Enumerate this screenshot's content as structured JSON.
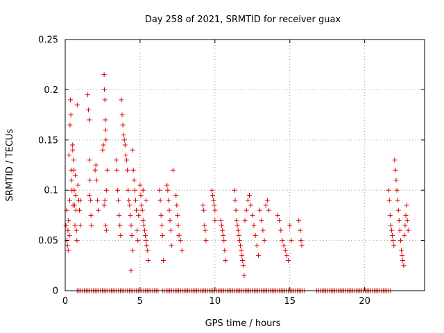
{
  "chart_data": {
    "type": "scatter",
    "title": "Day 258 of 2021, SRMTID for receiver guax",
    "xlabel": "GPS time / hours",
    "ylabel": "SRMTID / TECUs",
    "xlim": [
      0,
      24
    ],
    "ylim": [
      0,
      0.25
    ],
    "xticks": [
      0,
      5,
      10,
      15,
      20
    ],
    "xtick_labels": [
      "0",
      "5",
      "10",
      "15",
      "20"
    ],
    "yticks": [
      0,
      0.05,
      0.1,
      0.15,
      0.2,
      0.25
    ],
    "ytick_labels": [
      "0",
      "0.05",
      "0.1",
      "0.15",
      "0.2",
      "0.25"
    ],
    "grid": true,
    "marker": "+",
    "color": "#e00000",
    "series": [
      {
        "name": "SRMTID",
        "points": [
          [
            0.05,
            0.065
          ],
          [
            0.1,
            0.08
          ],
          [
            0.12,
            0.05
          ],
          [
            0.15,
            0.045
          ],
          [
            0.18,
            0.06
          ],
          [
            0.2,
            0.04
          ],
          [
            0.22,
            0.07
          ],
          [
            0.25,
            0.135
          ],
          [
            0.28,
            0.055
          ],
          [
            0.3,
            0.09
          ],
          [
            0.32,
            0.165
          ],
          [
            0.35,
            0.19
          ],
          [
            0.38,
            0.175
          ],
          [
            0.4,
            0.12
          ],
          [
            0.42,
            0.11
          ],
          [
            0.45,
            0.1
          ],
          [
            0.48,
            0.145
          ],
          [
            0.5,
            0.14
          ],
          [
            0.52,
            0.085
          ],
          [
            0.55,
            0.13
          ],
          [
            0.58,
            0.12
          ],
          [
            0.6,
            0.1
          ],
          [
            0.62,
            0.085
          ],
          [
            0.65,
            0.065
          ],
          [
            0.68,
            0.115
          ],
          [
            0.7,
            0.095
          ],
          [
            0.72,
            0.08
          ],
          [
            0.75,
            0.06
          ],
          [
            0.78,
            0.05
          ],
          [
            0.8,
            0.185
          ],
          [
            0.85,
            0.105
          ],
          [
            0.9,
            0.09
          ],
          [
            0.95,
            0.08
          ],
          [
            1.0,
            0.065
          ],
          [
            1.0,
            0.09
          ],
          [
            1.5,
            0.195
          ],
          [
            1.55,
            0.18
          ],
          [
            1.6,
            0.17
          ],
          [
            1.62,
            0.13
          ],
          [
            1.65,
            0.11
          ],
          [
            1.7,
            0.09
          ],
          [
            1.72,
            0.075
          ],
          [
            1.75,
            0.065
          ],
          [
            1.6,
            0.095
          ],
          [
            2.0,
            0.12
          ],
          [
            2.05,
            0.125
          ],
          [
            2.1,
            0.11
          ],
          [
            2.15,
            0.09
          ],
          [
            2.2,
            0.08
          ],
          [
            2.5,
            0.14
          ],
          [
            2.55,
            0.145
          ],
          [
            2.6,
            0.215
          ],
          [
            2.62,
            0.2
          ],
          [
            2.65,
            0.19
          ],
          [
            2.68,
            0.17
          ],
          [
            2.7,
            0.16
          ],
          [
            2.72,
            0.15
          ],
          [
            2.75,
            0.1
          ],
          [
            2.65,
            0.09
          ],
          [
            2.6,
            0.085
          ],
          [
            2.7,
            0.065
          ],
          [
            2.75,
            0.06
          ],
          [
            2.8,
            0.12
          ],
          [
            3.4,
            0.13
          ],
          [
            3.45,
            0.12
          ],
          [
            3.5,
            0.1
          ],
          [
            3.55,
            0.09
          ],
          [
            3.6,
            0.075
          ],
          [
            3.65,
            0.065
          ],
          [
            3.7,
            0.055
          ],
          [
            3.75,
            0.19
          ],
          [
            3.8,
            0.175
          ],
          [
            3.85,
            0.165
          ],
          [
            3.9,
            0.155
          ],
          [
            3.95,
            0.15
          ],
          [
            4.0,
            0.145
          ],
          [
            4.05,
            0.135
          ],
          [
            4.1,
            0.13
          ],
          [
            4.15,
            0.12
          ],
          [
            4.2,
            0.1
          ],
          [
            4.25,
            0.09
          ],
          [
            4.3,
            0.085
          ],
          [
            4.35,
            0.075
          ],
          [
            4.4,
            0.065
          ],
          [
            4.45,
            0.055
          ],
          [
            4.5,
            0.14
          ],
          [
            4.5,
            0.04
          ],
          [
            4.55,
            0.12
          ],
          [
            4.6,
            0.11
          ],
          [
            4.65,
            0.1
          ],
          [
            4.7,
            0.09
          ],
          [
            4.75,
            0.08
          ],
          [
            4.8,
            0.06
          ],
          [
            4.85,
            0.05
          ],
          [
            4.4,
            0.02
          ],
          [
            4.9,
            0.075
          ],
          [
            5.0,
            0.105
          ],
          [
            5.05,
            0.095
          ],
          [
            5.1,
            0.085
          ],
          [
            5.15,
            0.08
          ],
          [
            5.2,
            0.07
          ],
          [
            5.25,
            0.065
          ],
          [
            5.3,
            0.06
          ],
          [
            5.35,
            0.055
          ],
          [
            5.4,
            0.05
          ],
          [
            5.45,
            0.045
          ],
          [
            5.5,
            0.04
          ],
          [
            5.55,
            0.03
          ],
          [
            5.2,
            0.1
          ],
          [
            5.4,
            0.09
          ],
          [
            6.3,
            0.1
          ],
          [
            6.35,
            0.09
          ],
          [
            6.4,
            0.075
          ],
          [
            6.45,
            0.065
          ],
          [
            6.5,
            0.055
          ],
          [
            6.55,
            0.03
          ],
          [
            6.8,
            0.105
          ],
          [
            6.85,
            0.1
          ],
          [
            6.9,
            0.09
          ],
          [
            6.95,
            0.08
          ],
          [
            7.0,
            0.07
          ],
          [
            7.05,
            0.06
          ],
          [
            7.1,
            0.045
          ],
          [
            7.2,
            0.12
          ],
          [
            7.4,
            0.095
          ],
          [
            7.45,
            0.085
          ],
          [
            7.5,
            0.075
          ],
          [
            7.55,
            0.065
          ],
          [
            7.6,
            0.055
          ],
          [
            7.7,
            0.05
          ],
          [
            7.8,
            0.04
          ],
          [
            9.2,
            0.085
          ],
          [
            9.25,
            0.08
          ],
          [
            9.3,
            0.065
          ],
          [
            9.35,
            0.06
          ],
          [
            9.4,
            0.05
          ],
          [
            9.8,
            0.1
          ],
          [
            9.85,
            0.095
          ],
          [
            9.9,
            0.09
          ],
          [
            9.95,
            0.085
          ],
          [
            10.0,
            0.08
          ],
          [
            10.0,
            0.07
          ],
          [
            10.4,
            0.07
          ],
          [
            10.45,
            0.065
          ],
          [
            10.5,
            0.06
          ],
          [
            10.55,
            0.055
          ],
          [
            10.6,
            0.05
          ],
          [
            10.65,
            0.04
          ],
          [
            10.7,
            0.03
          ],
          [
            11.3,
            0.1
          ],
          [
            11.35,
            0.09
          ],
          [
            11.4,
            0.08
          ],
          [
            11.45,
            0.07
          ],
          [
            11.5,
            0.065
          ],
          [
            11.55,
            0.06
          ],
          [
            11.6,
            0.055
          ],
          [
            11.65,
            0.05
          ],
          [
            11.7,
            0.045
          ],
          [
            11.75,
            0.04
          ],
          [
            11.8,
            0.035
          ],
          [
            11.85,
            0.03
          ],
          [
            11.9,
            0.025
          ],
          [
            11.95,
            0.015
          ],
          [
            12.0,
            0.07
          ],
          [
            12.1,
            0.08
          ],
          [
            12.2,
            0.09
          ],
          [
            12.3,
            0.095
          ],
          [
            12.4,
            0.085
          ],
          [
            12.5,
            0.075
          ],
          [
            12.6,
            0.065
          ],
          [
            12.7,
            0.055
          ],
          [
            12.8,
            0.045
          ],
          [
            12.9,
            0.035
          ],
          [
            13.0,
            0.08
          ],
          [
            13.1,
            0.07
          ],
          [
            13.2,
            0.06
          ],
          [
            13.3,
            0.05
          ],
          [
            13.4,
            0.085
          ],
          [
            13.5,
            0.09
          ],
          [
            13.6,
            0.08
          ],
          [
            14.2,
            0.075
          ],
          [
            14.3,
            0.07
          ],
          [
            14.4,
            0.06
          ],
          [
            14.5,
            0.05
          ],
          [
            14.6,
            0.045
          ],
          [
            14.7,
            0.04
          ],
          [
            14.8,
            0.035
          ],
          [
            14.9,
            0.03
          ],
          [
            15.0,
            0.065
          ],
          [
            15.1,
            0.05
          ],
          [
            15.6,
            0.07
          ],
          [
            15.7,
            0.06
          ],
          [
            15.75,
            0.05
          ],
          [
            15.8,
            0.045
          ],
          [
            21.6,
            0.1
          ],
          [
            21.65,
            0.09
          ],
          [
            21.7,
            0.075
          ],
          [
            21.75,
            0.065
          ],
          [
            21.8,
            0.06
          ],
          [
            21.85,
            0.055
          ],
          [
            21.9,
            0.05
          ],
          [
            21.95,
            0.045
          ],
          [
            22.0,
            0.13
          ],
          [
            22.05,
            0.12
          ],
          [
            22.1,
            0.11
          ],
          [
            22.15,
            0.1
          ],
          [
            22.2,
            0.09
          ],
          [
            22.25,
            0.08
          ],
          [
            22.3,
            0.07
          ],
          [
            22.35,
            0.06
          ],
          [
            22.4,
            0.05
          ],
          [
            22.45,
            0.04
          ],
          [
            22.5,
            0.035
          ],
          [
            22.55,
            0.03
          ],
          [
            22.6,
            0.025
          ],
          [
            22.65,
            0.055
          ],
          [
            22.7,
            0.065
          ],
          [
            22.75,
            0.075
          ],
          [
            22.8,
            0.085
          ],
          [
            22.85,
            0.07
          ],
          [
            22.9,
            0.06
          ]
        ]
      },
      {
        "name": "zero baseline",
        "x_ranges": [
          [
            0.8,
            6.2
          ],
          [
            6.5,
            16.0
          ],
          [
            16.8,
            21.8
          ]
        ],
        "x_step": 0.12,
        "y": 0
      }
    ]
  }
}
